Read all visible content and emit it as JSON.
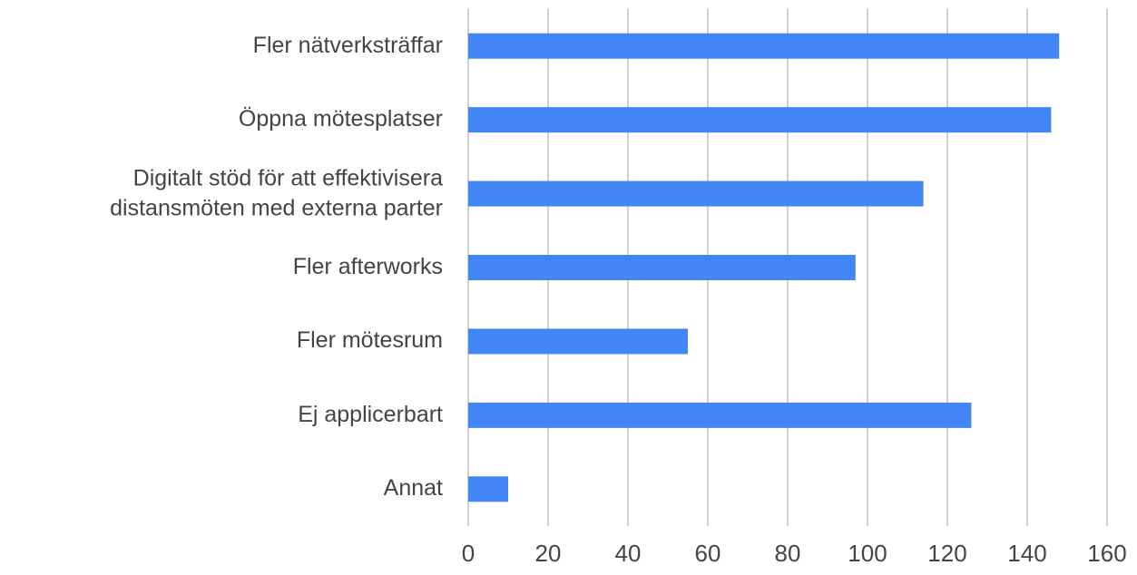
{
  "chart_data": {
    "type": "bar",
    "orientation": "horizontal",
    "categories": [
      "Fler nätverksträffar",
      "Öppna mötesplatser",
      "Digitalt stöd för att effektivisera\ndistansmöten med externa parter",
      "Fler afterworks",
      "Fler mötesrum",
      "Ej applicerbart",
      "Annat"
    ],
    "values": [
      148,
      146,
      114,
      97,
      55,
      126,
      10
    ],
    "color": "#4285f4",
    "xlim": [
      0,
      160
    ],
    "xticks": [
      0,
      20,
      40,
      60,
      80,
      100,
      120,
      140,
      160
    ],
    "grid": true
  }
}
